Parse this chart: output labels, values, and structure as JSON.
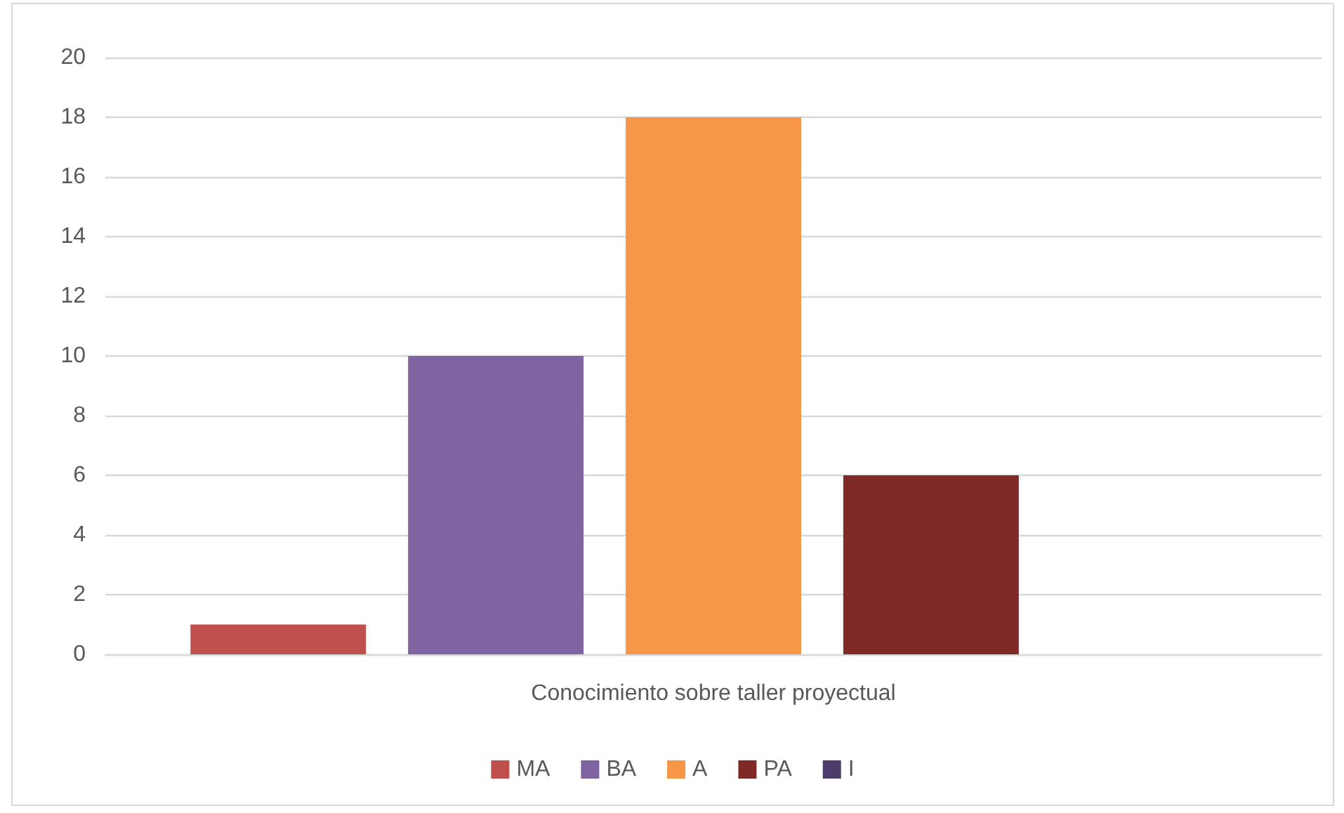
{
  "chart_data": {
    "type": "bar",
    "categories": [
      "Conocimiento sobre taller proyectual"
    ],
    "series": [
      {
        "name": "MA",
        "color": "#c0504d",
        "values": [
          1
        ]
      },
      {
        "name": "BA",
        "color": "#8064a2",
        "values": [
          10
        ]
      },
      {
        "name": "A",
        "color": "#f79646",
        "values": [
          18
        ]
      },
      {
        "name": "PA",
        "color": "#7f2a26",
        "values": [
          6
        ]
      },
      {
        "name": "I",
        "color": "#4b3a6a",
        "values": [
          0
        ]
      }
    ],
    "ylim": [
      0,
      20
    ],
    "yticks": [
      0,
      2,
      4,
      6,
      8,
      10,
      12,
      14,
      16,
      18,
      20
    ],
    "grid": "y",
    "legend": "bottom"
  }
}
